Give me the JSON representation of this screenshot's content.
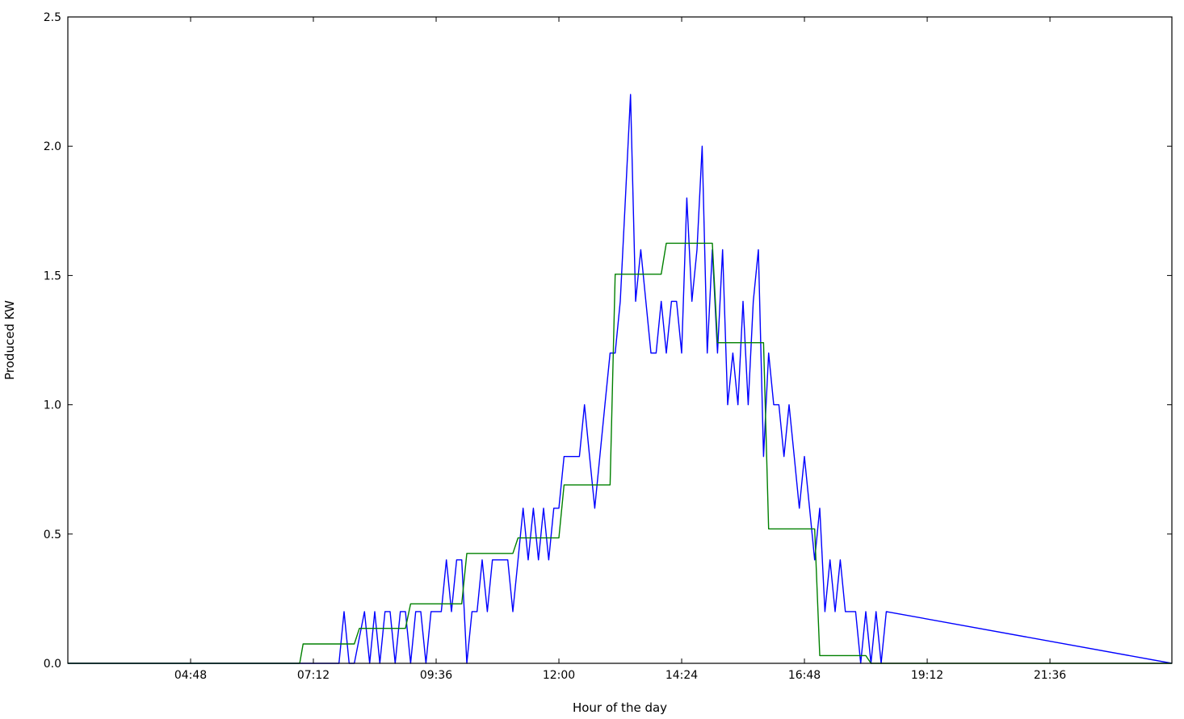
{
  "chart_data": {
    "type": "line",
    "title": "",
    "xlabel": "Hour of the day",
    "ylabel": "Produced KW",
    "xlim": [
      "02:24",
      "23:59"
    ],
    "ylim": [
      0,
      2.5
    ],
    "xticks": [
      "04:48",
      "07:12",
      "09:36",
      "12:00",
      "14:24",
      "16:48",
      "19:12",
      "21:36"
    ],
    "yticks": [
      "0.0",
      "0.5",
      "1.0",
      "1.5",
      "2.0",
      "2.5"
    ],
    "grid": false,
    "colors": {
      "series1": "#0000ff",
      "series2": "#008000"
    },
    "series": [
      {
        "x": [
          "02:24",
          "07:42",
          "07:48",
          "07:54",
          "08:00",
          "08:12",
          "08:18",
          "08:24",
          "08:30",
          "08:36",
          "08:42",
          "08:48",
          "08:54",
          "09:00",
          "09:06",
          "09:12",
          "09:18",
          "09:24",
          "09:30",
          "09:36",
          "09:42",
          "09:48",
          "09:54",
          "10:00",
          "10:06",
          "10:12",
          "10:18",
          "10:24",
          "10:30",
          "10:36",
          "10:42",
          "10:48",
          "10:54",
          "11:00",
          "11:06",
          "11:12",
          "11:18",
          "11:24",
          "11:30",
          "11:36",
          "11:42",
          "11:48",
          "11:54",
          "12:00",
          "12:06",
          "12:12",
          "12:24",
          "12:30",
          "12:36",
          "12:42",
          "12:48",
          "12:54",
          "13:00",
          "13:06",
          "13:12",
          "13:18",
          "13:24",
          "13:30",
          "13:36",
          "13:42",
          "13:48",
          "13:54",
          "14:00",
          "14:06",
          "14:12",
          "14:18",
          "14:24",
          "14:30",
          "14:36",
          "14:42",
          "14:48",
          "14:54",
          "15:00",
          "15:06",
          "15:12",
          "15:18",
          "15:24",
          "15:30",
          "15:36",
          "15:42",
          "15:48",
          "15:54",
          "16:00",
          "16:06",
          "16:12",
          "16:18",
          "16:24",
          "16:30",
          "16:36",
          "16:42",
          "16:48",
          "16:54",
          "17:00",
          "17:06",
          "17:12",
          "17:18",
          "17:24",
          "17:30",
          "17:36",
          "17:42",
          "17:48",
          "17:54",
          "18:00",
          "18:06",
          "18:12",
          "18:18",
          "18:24",
          "23:59"
        ],
        "values": [
          0,
          0,
          0.2,
          0,
          0,
          0.2,
          0,
          0.2,
          0,
          0.2,
          0.2,
          0,
          0.2,
          0.2,
          0,
          0.2,
          0.2,
          0,
          0.2,
          0.2,
          0.2,
          0.4,
          0.2,
          0.4,
          0.4,
          0,
          0.2,
          0.2,
          0.4,
          0.2,
          0.4,
          0.4,
          0.4,
          0.4,
          0.2,
          0.4,
          0.6,
          0.4,
          0.6,
          0.4,
          0.6,
          0.4,
          0.6,
          0.6,
          0.8,
          0.8,
          0.8,
          1.0,
          0.8,
          0.6,
          0.8,
          1.0,
          1.2,
          1.2,
          1.4,
          1.8,
          2.2,
          1.4,
          1.6,
          1.4,
          1.2,
          1.2,
          1.4,
          1.2,
          1.4,
          1.4,
          1.2,
          1.8,
          1.4,
          1.6,
          2.0,
          1.2,
          1.6,
          1.2,
          1.6,
          1.0,
          1.2,
          1.0,
          1.4,
          1.0,
          1.4,
          1.6,
          0.8,
          1.2,
          1.0,
          1.0,
          0.8,
          1.0,
          0.8,
          0.6,
          0.8,
          0.6,
          0.4,
          0.6,
          0.2,
          0.4,
          0.2,
          0.4,
          0.2,
          0.2,
          0.2,
          0,
          0.2,
          0,
          0.2,
          0,
          0.2,
          0
        ]
      },
      {
        "x": [
          "02:24",
          "06:56",
          "07:00",
          "08:00",
          "08:06",
          "09:00",
          "09:06",
          "10:06",
          "10:12",
          "11:06",
          "11:12",
          "12:00",
          "12:06",
          "13:00",
          "13:06",
          "14:00",
          "14:06",
          "15:00",
          "15:06",
          "16:00",
          "16:06",
          "17:00",
          "17:06",
          "18:00",
          "18:06",
          "23:59"
        ],
        "values": [
          0,
          0,
          0.075,
          0.075,
          0.135,
          0.135,
          0.23,
          0.23,
          0.425,
          0.425,
          0.485,
          0.485,
          0.69,
          0.69,
          1.505,
          1.505,
          1.625,
          1.625,
          1.24,
          1.24,
          0.52,
          0.52,
          0.03,
          0.03,
          0,
          0
        ]
      }
    ]
  }
}
